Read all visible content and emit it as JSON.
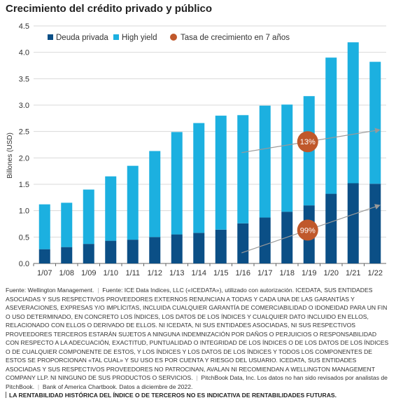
{
  "title": "Crecimiento del crédito privado y público",
  "chart_data": {
    "type": "bar",
    "stacked": true,
    "categories": [
      "1/07",
      "1/08",
      "1/09",
      "1/10",
      "1/11",
      "1/12",
      "1/13",
      "1/14",
      "1/15",
      "1/16",
      "1/17",
      "1/18",
      "1/19",
      "1/20",
      "1/21",
      "1/22"
    ],
    "series": [
      {
        "name": "Deuda privada",
        "color": "#0b4f86",
        "values": [
          0.27,
          0.31,
          0.37,
          0.43,
          0.45,
          0.5,
          0.55,
          0.58,
          0.64,
          0.76,
          0.87,
          0.98,
          1.1,
          1.32,
          1.52,
          1.51
        ]
      },
      {
        "name": "High yield",
        "color": "#1cb0e0",
        "values": [
          0.85,
          0.84,
          1.03,
          1.22,
          1.4,
          1.63,
          1.94,
          2.08,
          2.16,
          2.05,
          2.12,
          2.03,
          2.07,
          2.58,
          2.67,
          2.31
        ]
      }
    ],
    "growth_label": "Tasa de crecimiento en 7 años",
    "growth_color": "#c0582b",
    "annotations": [
      {
        "label": "13%",
        "value": 0.13,
        "series": "High yield"
      },
      {
        "label": "99%",
        "value": 0.99,
        "series": "Deuda privada"
      }
    ],
    "ylabel": "Billones (USD)",
    "ylim": [
      0,
      4.5
    ],
    "yticks": [
      "0.0",
      "0.5",
      "1.0",
      "1.5",
      "2.0",
      "2.5",
      "3.0",
      "3.5",
      "4.0",
      "4.5"
    ],
    "grid": true,
    "legend": "top-left"
  },
  "notes": {
    "source1": "Fuente: Wellington Management.",
    "source2": "Fuente: ICE Data Indices, LLC («ICEDATA»), utilizado con autorización. ICEDATA, SUS ENTIDADES ASOCIADAS Y SUS RESPECTIVOS PROVEEDORES EXTERNOS RENUNCIAN A TODAS Y CADA UNA DE LAS GARANTÍAS Y ASEVERACIONES, EXPRESAS Y/O IMPLÍCITAS, INCLUIDA CUALQUIER GARANTÍA DE COMERCIABILIDAD O IDONEIDAD PARA UN FIN O USO DETERMINADO, EN CONCRETO LOS ÍNDICES, LOS DATOS DE LOS ÍNDICES Y CUALQUIER DATO INCLUIDO EN ELLOS, RELACIONADO CON ELLOS O DERIVADO DE ELLOS. NI ICEDATA, NI SUS ENTIDADES ASOCIADAS, NI SUS RESPECTIVOS PROVEEDORES TERCEROS ESTARÁN SUJETOS A NINGUNA INDEMNIZACIÓN POR DAÑOS O PERJUICIOS O RESPONSABILIDAD CON RESPECTO A LA ADECUACIÓN, EXACTITUD, PUNTUALIDAD O INTEGRIDAD DE LOS ÍNDICES O DE LOS DATOS DE LOS ÍNDICES O DE CUALQUIER COMPONENTE DE ESTOS, Y LOS ÍNDICES Y LOS DATOS DE LOS ÍNDICES Y TODOS LOS COMPONENTES DE ESTOS SE PROPORCIONAN «TAL CUAL» Y SU USO ES POR CUENTA Y RIESGO DEL USUARIO. ICEDATA, SUS ENTIDADES ASOCIADAS Y SUS RESPECTIVOS PROVEEDORES NO PATROCINAN, AVALAN NI RECOMIENDAN A WELLINGTON MANAGEMENT COMPANY LLP. NI NINGUNO DE SUS PRODUCTOS O SERVICIOS.",
    "source3": "PitchBook Data, Inc. Los datos no han sido revisados por analistas de PitchBook.",
    "source4": "Bank of America Chartbook. Datos a diciembre de 2022.",
    "disclaimer": "LA RENTABILIDAD HISTÓRICA DEL ÍNDICE O DE TERCEROS NO ES INDICATIVA DE RENTABILIDADES FUTURAS."
  }
}
